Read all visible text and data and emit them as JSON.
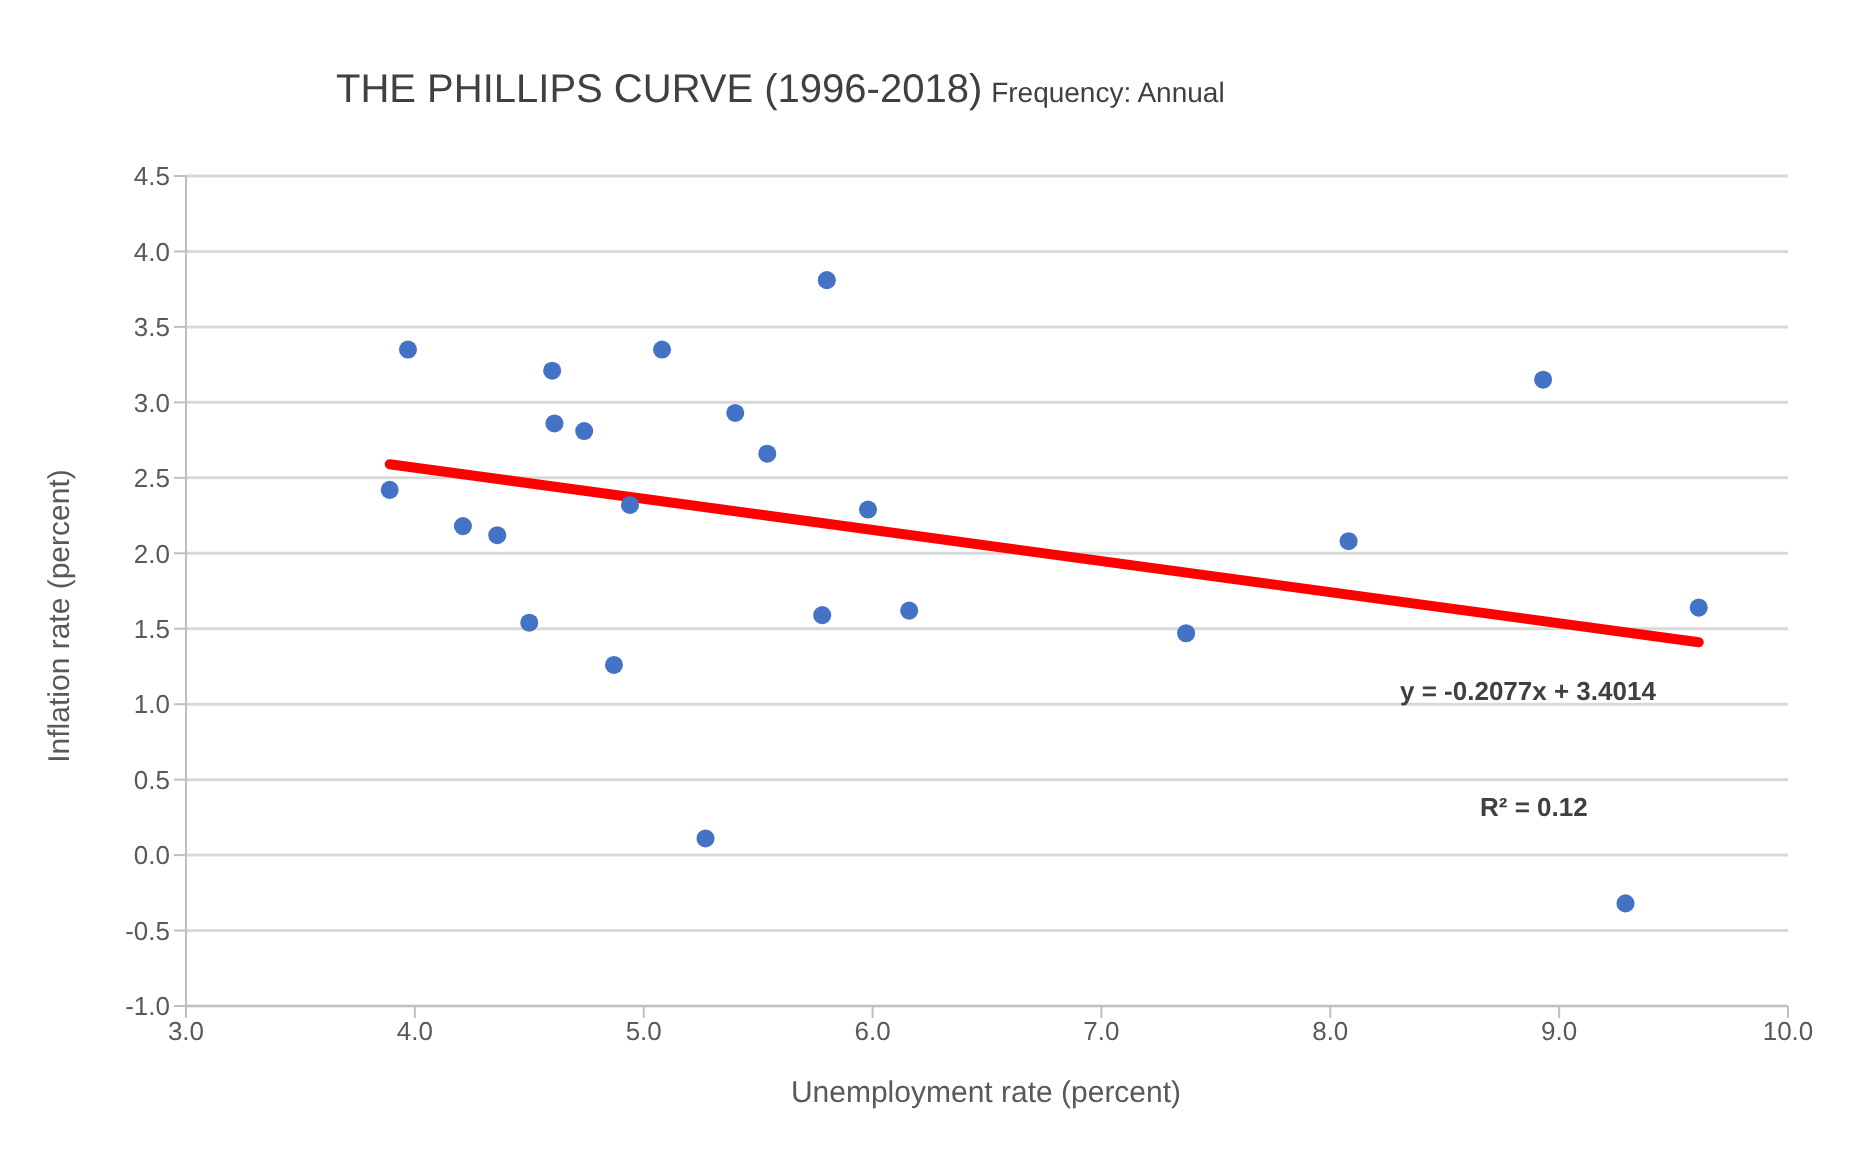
{
  "chart_data": {
    "type": "scatter",
    "title": "THE PHILLIPS CURVE (1996-2018)",
    "subtitle": "Frequency: Annual",
    "xlabel": "Unemployment rate (percent)",
    "ylabel": "Inflation rate (percent)",
    "series": [
      {
        "color": "#4472c4",
        "marker": "circle",
        "x": [
          3.89,
          3.97,
          4.21,
          4.36,
          4.5,
          4.6,
          4.61,
          4.74,
          4.87,
          4.94,
          5.08,
          5.27,
          5.4,
          5.54,
          5.78,
          5.8,
          5.98,
          6.16,
          7.37,
          8.08,
          8.93,
          9.29,
          9.61
        ],
        "values": [
          2.42,
          3.35,
          2.18,
          2.12,
          1.54,
          3.21,
          2.86,
          2.81,
          1.26,
          2.32,
          3.35,
          0.11,
          2.93,
          2.66,
          1.59,
          3.81,
          2.29,
          1.62,
          1.47,
          2.08,
          3.15,
          -0.32,
          1.64
        ]
      },
      {
        "type": "line",
        "color": "#ff0000",
        "x": [
          3.89,
          9.61
        ],
        "values": [
          2.59,
          1.41
        ]
      }
    ],
    "annotations": [
      "y = -0.2077x + 3.4014",
      "R² = 0.12"
    ],
    "xlim": [
      3.0,
      10.0
    ],
    "xticks": [
      {
        "value": 3,
        "label": "3.0"
      },
      {
        "value": 4,
        "label": "4.0"
      },
      {
        "value": 5,
        "label": "5.0"
      },
      {
        "value": 6,
        "label": "6.0"
      },
      {
        "value": 7,
        "label": "7.0"
      },
      {
        "value": 8,
        "label": "8.0"
      },
      {
        "value": 9,
        "label": "9.0"
      },
      {
        "value": 10,
        "label": "10.0"
      }
    ],
    "ylim": [
      -1.0,
      4.5
    ],
    "yticks": [
      {
        "value": -1,
        "label": "-1.0"
      },
      {
        "value": -0.5,
        "label": "-0.5"
      },
      {
        "value": 0,
        "label": "0.0"
      },
      {
        "value": 0.5,
        "label": "0.5"
      },
      {
        "value": 1,
        "label": "1.0"
      },
      {
        "value": 1.5,
        "label": "1.5"
      },
      {
        "value": 2,
        "label": "2.0"
      },
      {
        "value": 2.5,
        "label": "2.5"
      },
      {
        "value": 3,
        "label": "3.0"
      },
      {
        "value": 3.5,
        "label": "3.5"
      },
      {
        "value": 4,
        "label": "4.0"
      },
      {
        "value": 4.5,
        "label": "4.5"
      }
    ],
    "grid": "y"
  }
}
